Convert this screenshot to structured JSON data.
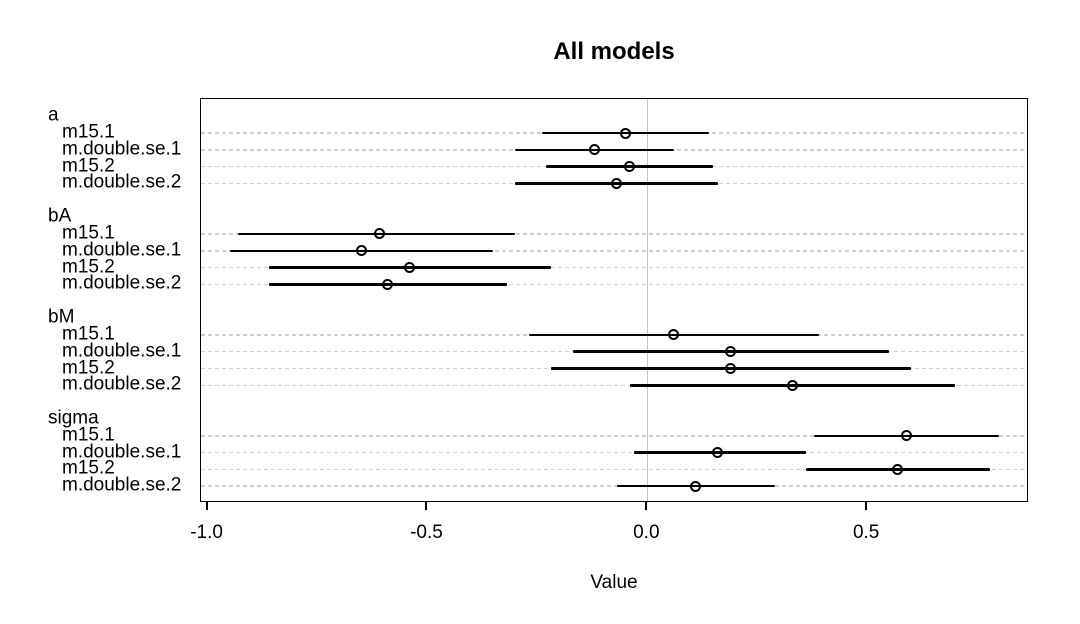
{
  "chart_data": {
    "type": "scatter",
    "subtype": "coefficient-interval-dotchart",
    "title": "All models",
    "xlabel": "Value",
    "xlim": [
      -1.015,
      0.868
    ],
    "xticks": [
      -1.0,
      -0.5,
      0.0,
      0.5
    ],
    "xtick_labels": [
      "-1.0",
      "-0.5",
      "0.0",
      "0.5"
    ],
    "zero_line_x": 0,
    "grid": "dashed-horizontal-per-row",
    "legend": "none",
    "groups": [
      {
        "name": "a",
        "rows": [
          {
            "model": "m15.1",
            "value": -0.05,
            "lo": -0.24,
            "hi": 0.14
          },
          {
            "model": "m.double.se.1",
            "value": -0.12,
            "lo": -0.3,
            "hi": 0.06
          },
          {
            "model": "m15.2",
            "value": -0.04,
            "lo": -0.23,
            "hi": 0.15
          },
          {
            "model": "m.double.se.2",
            "value": -0.07,
            "lo": -0.3,
            "hi": 0.16
          }
        ]
      },
      {
        "name": "bA",
        "rows": [
          {
            "model": "m15.1",
            "value": -0.61,
            "lo": -0.93,
            "hi": -0.3
          },
          {
            "model": "m.double.se.1",
            "value": -0.65,
            "lo": -0.95,
            "hi": -0.35
          },
          {
            "model": "m15.2",
            "value": -0.54,
            "lo": -0.86,
            "hi": -0.22
          },
          {
            "model": "m.double.se.2",
            "value": -0.59,
            "lo": -0.86,
            "hi": -0.32
          }
        ]
      },
      {
        "name": "bM",
        "rows": [
          {
            "model": "m15.1",
            "value": 0.06,
            "lo": -0.27,
            "hi": 0.39
          },
          {
            "model": "m.double.se.1",
            "value": 0.19,
            "lo": -0.17,
            "hi": 0.55
          },
          {
            "model": "m15.2",
            "value": 0.19,
            "lo": -0.22,
            "hi": 0.6
          },
          {
            "model": "m.double.se.2",
            "value": 0.33,
            "lo": -0.04,
            "hi": 0.7
          }
        ]
      },
      {
        "name": "sigma",
        "rows": [
          {
            "model": "m15.1",
            "value": 0.59,
            "lo": 0.38,
            "hi": 0.8
          },
          {
            "model": "m.double.se.1",
            "value": 0.16,
            "lo": -0.03,
            "hi": 0.36
          },
          {
            "model": "m15.2",
            "value": 0.57,
            "lo": 0.36,
            "hi": 0.78
          },
          {
            "model": "m.double.se.2",
            "value": 0.11,
            "lo": -0.07,
            "hi": 0.29
          }
        ]
      }
    ],
    "colors": {
      "point": "#000000",
      "interval": "#000000",
      "grid": "#cfcfcf",
      "zero_line": "#c2c2c2",
      "box_border": "#000000",
      "background": "#ffffff"
    }
  }
}
